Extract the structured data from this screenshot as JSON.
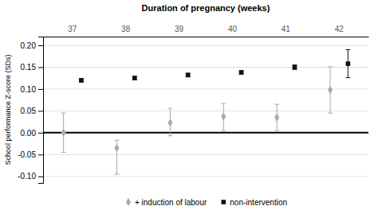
{
  "chart_data": {
    "type": "errorbar",
    "title": "Duration of pregnancy (weeks)",
    "ylabel": "School performance Z-score (SDs)",
    "categories": [
      "37",
      "38",
      "39",
      "40",
      "41",
      "42"
    ],
    "series": [
      {
        "name": "+ induction of labour",
        "color": "#aaaaaa",
        "marker": "diamond",
        "values": [
          0.0,
          -0.035,
          0.023,
          0.037,
          0.035,
          0.098
        ],
        "yerr_lo": [
          0.045,
          0.06,
          0.03,
          0.033,
          0.03,
          0.053
        ],
        "yerr_hi": [
          0.045,
          0.018,
          0.033,
          0.03,
          0.03,
          0.053
        ]
      },
      {
        "name": "non-intervention",
        "color": "#111111",
        "marker": "square",
        "values": [
          0.12,
          0.125,
          0.132,
          0.138,
          0.15,
          0.158
        ],
        "yerr_lo": [
          0.004,
          0.004,
          0.004,
          0.004,
          0.005,
          0.032
        ],
        "yerr_hi": [
          0.004,
          0.004,
          0.004,
          0.004,
          0.005,
          0.032
        ]
      }
    ],
    "hline": 0.0,
    "ylim": [
      -0.115,
      0.22
    ],
    "yticks": [
      {
        "value": -0.1,
        "label": "-0.10"
      },
      -0.05,
      {
        "value": 0.0,
        "label": "0.00"
      },
      0.05,
      {
        "value": 0.1,
        "label": "0.10"
      },
      0.15,
      {
        "value": 0.2,
        "label": "0.20"
      }
    ],
    "grid": true,
    "legend": "bottom"
  }
}
